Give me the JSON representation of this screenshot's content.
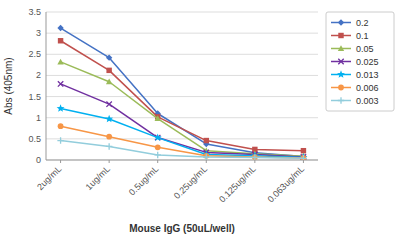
{
  "chart_data": {
    "type": "line",
    "categories": [
      "2ug/mL",
      "1ug/mL",
      "0.5ug/mL",
      "0.25ug/mL",
      "0.125ug/mL",
      "0.063ug/mL"
    ],
    "series": [
      {
        "name": "0.2",
        "color": "#4472C4",
        "marker": "diamond",
        "values": [
          3.12,
          2.42,
          1.1,
          0.38,
          0.17,
          0.08
        ]
      },
      {
        "name": "0.1",
        "color": "#C0504D",
        "marker": "square",
        "values": [
          2.82,
          2.12,
          1.02,
          0.46,
          0.25,
          0.22
        ]
      },
      {
        "name": "0.05",
        "color": "#9BBB59",
        "marker": "triangle",
        "values": [
          2.32,
          1.85,
          0.98,
          0.22,
          0.15,
          0.09
        ]
      },
      {
        "name": "0.025",
        "color": "#7030A0",
        "marker": "x",
        "values": [
          1.8,
          1.32,
          0.53,
          0.18,
          0.13,
          0.07
        ]
      },
      {
        "name": "0.013",
        "color": "#00B0F0",
        "marker": "star",
        "values": [
          1.22,
          0.97,
          0.53,
          0.13,
          0.1,
          0.06
        ]
      },
      {
        "name": "0.006",
        "color": "#F79646",
        "marker": "circle",
        "values": [
          0.8,
          0.55,
          0.3,
          0.1,
          0.07,
          0.05
        ]
      },
      {
        "name": "0.003",
        "color": "#92CDDC",
        "marker": "plus",
        "values": [
          0.46,
          0.32,
          0.12,
          0.07,
          0.06,
          0.04
        ]
      }
    ],
    "x_label": "Mouse IgG (50uL/well)",
    "y_label": "Abs (405nm)",
    "ylim": [
      0,
      3.5
    ],
    "yticks": [
      0,
      0.5,
      1,
      1.5,
      2,
      2.5,
      3,
      3.5
    ],
    "grid": true,
    "legend": "upper right"
  }
}
